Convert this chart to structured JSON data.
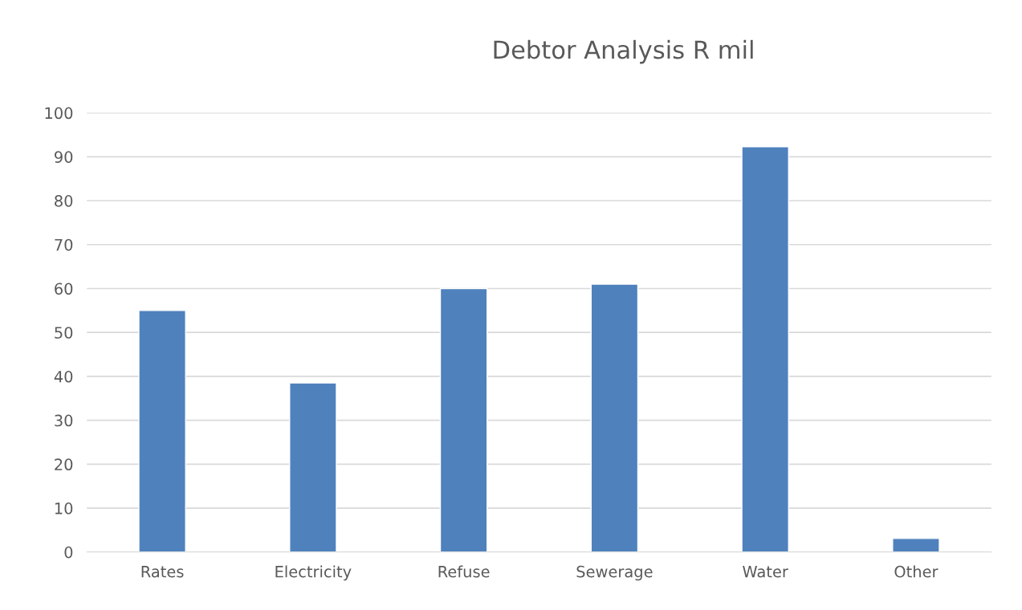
{
  "chart_data": {
    "type": "bar",
    "title": "Debtor Analysis R mil",
    "categories": [
      "Rates",
      "Electricity",
      "Refuse",
      "Sewerage",
      "Water",
      "Other"
    ],
    "values": [
      55,
      38.5,
      60,
      61,
      92.3,
      3.1
    ],
    "color": "#4f81bd",
    "ylim": [
      0,
      100
    ],
    "yticks": [
      0,
      10,
      20,
      30,
      40,
      50,
      60,
      70,
      80,
      90,
      100
    ],
    "grid": "y"
  }
}
